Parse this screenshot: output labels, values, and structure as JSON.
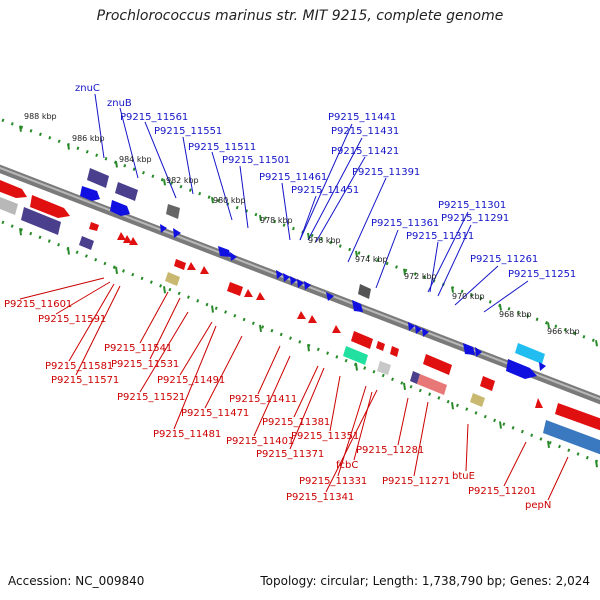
{
  "title": "Prochlorococcus marinus str. MIT 9215, complete genome",
  "footer": {
    "accession": "Accession: NC_009840",
    "summary": "Topology: circular; Length: 1,738,790 bp; Genes: 2,024"
  },
  "colors": {
    "backbone": "#8a8a8a",
    "forward_label": "#1515c8",
    "reverse_label": "#cc0000",
    "tick_track": "#2a8a2a"
  },
  "ruler": [
    "988 kbp",
    "986 kbp",
    "984 kbp",
    "982 kbp",
    "980 kbp",
    "978 kbp",
    "976 kbp",
    "974 kbp",
    "972 kbp",
    "970 kbp",
    "968 kbp",
    "966 kbp"
  ],
  "forward_genes": [
    "znuC",
    "znuB",
    "P9215_11561",
    "P9215_11551",
    "P9215_11511",
    "P9215_11501",
    "P9215_11461",
    "P9215_11451",
    "P9215_11441",
    "P9215_11431",
    "P9215_11421",
    "P9215_11391",
    "P9215_11361",
    "P9215_11311",
    "P9215_11301",
    "P9215_11291",
    "P9215_11261",
    "P9215_11251"
  ],
  "reverse_genes": [
    "P9215_11601",
    "P9215_11591",
    "P9215_11581",
    "P9215_11571",
    "P9215_11541",
    "P9215_11531",
    "P9215_11521",
    "P9215_11491",
    "P9215_11481",
    "P9215_11471",
    "P9215_11411",
    "P9215_11401",
    "P9215_11381",
    "P9215_11371",
    "P9215_11351",
    "fcbC",
    "P9215_11331",
    "P9215_11341",
    "P9215_11281",
    "P9215_11271",
    "btuE",
    "P9215_11201",
    "pepN"
  ]
}
